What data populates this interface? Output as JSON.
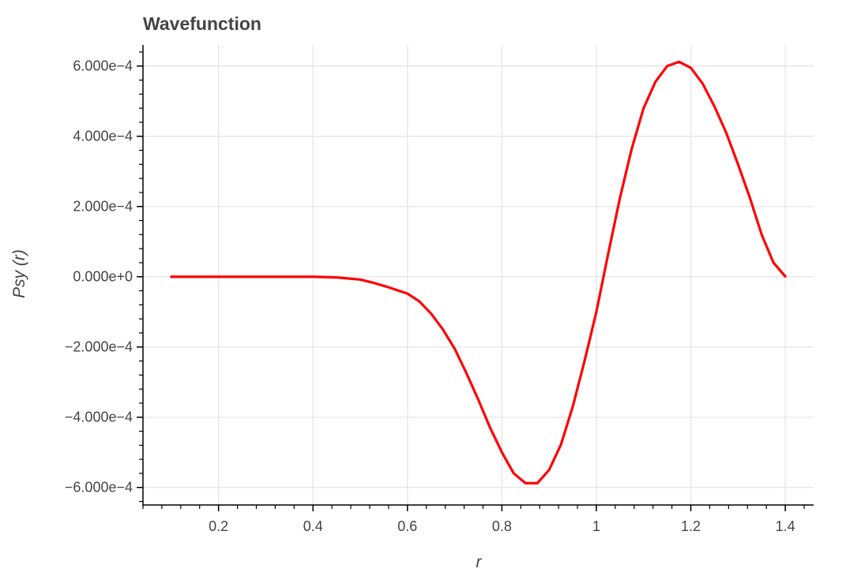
{
  "chart_data": {
    "type": "line",
    "title": "Wavefunction",
    "xlabel": "r",
    "ylabel": "Psy (r)",
    "xlim": [
      0.04,
      1.46
    ],
    "ylim": [
      -0.00065,
      0.00066
    ],
    "x_ticks": [
      0.2,
      0.4,
      0.6,
      0.8,
      1.0,
      1.2,
      1.4
    ],
    "x_tick_labels": [
      "0.2",
      "0.4",
      "0.6",
      "0.8",
      "1",
      "1.2",
      "1.4"
    ],
    "y_ticks": [
      0.0006,
      0.0004,
      0.0002,
      0.0,
      -0.0002,
      -0.0004,
      -0.0006
    ],
    "y_tick_labels": [
      "6.000e−4",
      "4.000e−4",
      "2.000e−4",
      "0.000e+0",
      "−2.000e−4",
      "−4.000e−4",
      "−6.000e−4"
    ],
    "grid": true,
    "color": "#ff0000",
    "series": [
      {
        "x": [
          0.1,
          0.2,
          0.3,
          0.4,
          0.45,
          0.5,
          0.53,
          0.56,
          0.6,
          0.625,
          0.65,
          0.675,
          0.7,
          0.725,
          0.75,
          0.775,
          0.8,
          0.825,
          0.85,
          0.875,
          0.9,
          0.925,
          0.95,
          0.975,
          1.0,
          1.025,
          1.05,
          1.075,
          1.1,
          1.125,
          1.15,
          1.175,
          1.2,
          1.225,
          1.25,
          1.275,
          1.3,
          1.325,
          1.35,
          1.375,
          1.4
        ],
        "values": [
          0.0,
          0.0,
          0.0,
          0.0,
          -2e-06,
          -8e-06,
          -1.8e-05,
          -3e-05,
          -4.8e-05,
          -7e-05,
          -0.000105,
          -0.00015,
          -0.000205,
          -0.000275,
          -0.00035,
          -0.00043,
          -0.0005,
          -0.00056,
          -0.000588,
          -0.000588,
          -0.00055,
          -0.000478,
          -0.00037,
          -0.00024,
          -0.0001,
          6.5e-05,
          0.000225,
          0.000365,
          0.00048,
          0.000555,
          0.0006,
          0.000612,
          0.000595,
          0.00055,
          0.000485,
          0.00041,
          0.00032,
          0.000225,
          0.00012,
          4e-05,
          1e-06
        ]
      }
    ]
  }
}
